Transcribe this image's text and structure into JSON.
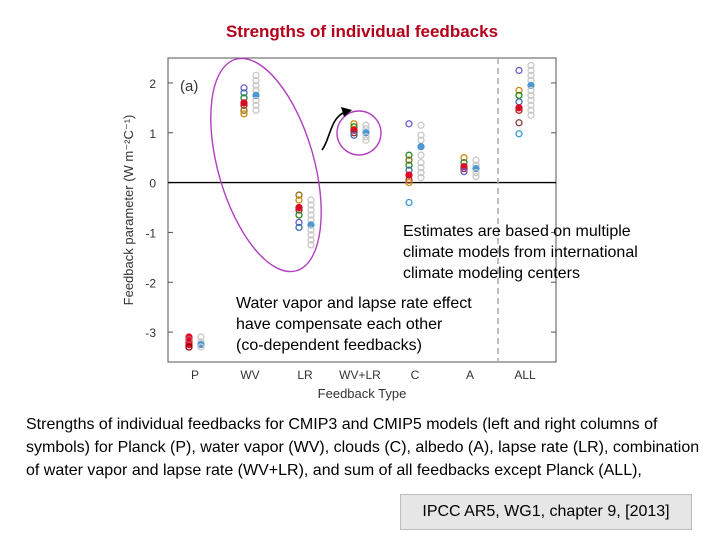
{
  "title": "Strengths of individual feedbacks",
  "notes": {
    "estimates": [
      "Estimates are based on multiple",
      "climate models from international",
      "climate modeling centers"
    ],
    "compensate": [
      "Water vapor and lapse rate effect",
      "have compensate each other",
      "(co-dependent feedbacks)"
    ]
  },
  "caption": "Strengths of individual feedbacks for CMIP3 and CMIP5 models (left and right columns of symbols) for Planck (P), water vapor (WV), clouds (C), albedo (A), lapse rate (LR), combination of water vapor and lapse rate (WV+LR), and sum of all feedbacks except Planck (ALL),",
  "source": "IPCC AR5, WG1, chapter 9, [2013]",
  "chart_data": {
    "type": "scatter",
    "panel_label": "(a)",
    "xlabel": "Feedback Type",
    "ylabel": "Feedback parameter (W m⁻²C⁻¹)",
    "categories": [
      "P",
      "WV",
      "LR",
      "WV+LR",
      "C",
      "A",
      "ALL"
    ],
    "ylim": [
      -3.6,
      2.5
    ],
    "yticks": [
      -3,
      -2,
      -1,
      0,
      1,
      2
    ],
    "zero_line": true,
    "divider_before": "ALL",
    "colors": {
      "mean": "#e8002a",
      "model_mean_right": "#4f97d1",
      "light": "#c8c8c8",
      "highlight_ellipse": "#b040c0"
    },
    "columns": {
      "P": {
        "left": [
          {
            "y": -3.1,
            "c": "#e8002a"
          },
          {
            "y": -3.2,
            "c": "#e8002a"
          },
          {
            "y": -3.25,
            "c": "#e8002a"
          },
          {
            "y": -3.3,
            "c": "#8b0000"
          },
          {
            "y": -3.15,
            "c": "#c0505a"
          }
        ],
        "right": [
          {
            "y": -3.1,
            "c": "#c8c8c8"
          },
          {
            "y": -3.2,
            "c": "#c8c8c8"
          },
          {
            "y": -3.25,
            "c": "#4f97d1"
          },
          {
            "y": -3.3,
            "c": "#c8c8c8"
          }
        ]
      },
      "WV": {
        "left": [
          {
            "y": 1.9,
            "c": "#6a5acd"
          },
          {
            "y": 1.8,
            "c": "#3a6fb0"
          },
          {
            "y": 1.7,
            "c": "#228b22"
          },
          {
            "y": 1.6,
            "c": "#e8002a"
          },
          {
            "y": 1.55,
            "c": "#b22222"
          },
          {
            "y": 1.45,
            "c": "#8b6914"
          },
          {
            "y": 1.38,
            "c": "#cc8800"
          }
        ],
        "right": [
          {
            "y": 2.15,
            "c": "#c8c8c8"
          },
          {
            "y": 2.05,
            "c": "#c8c8c8"
          },
          {
            "y": 1.95,
            "c": "#c8c8c8"
          },
          {
            "y": 1.85,
            "c": "#c8c8c8"
          },
          {
            "y": 1.75,
            "c": "#4f97d1"
          },
          {
            "y": 1.65,
            "c": "#c8c8c8"
          },
          {
            "y": 1.55,
            "c": "#c8c8c8"
          },
          {
            "y": 1.45,
            "c": "#c8c8c8"
          }
        ]
      },
      "LR": {
        "left": [
          {
            "y": -0.25,
            "c": "#8b6914"
          },
          {
            "y": -0.35,
            "c": "#cc8800"
          },
          {
            "y": -0.5,
            "c": "#e8002a"
          },
          {
            "y": -0.55,
            "c": "#b22222"
          },
          {
            "y": -0.65,
            "c": "#228b22"
          },
          {
            "y": -0.8,
            "c": "#6a5acd"
          },
          {
            "y": -0.9,
            "c": "#3a6fb0"
          }
        ],
        "right": [
          {
            "y": -0.35,
            "c": "#c8c8c8"
          },
          {
            "y": -0.45,
            "c": "#c8c8c8"
          },
          {
            "y": -0.55,
            "c": "#c8c8c8"
          },
          {
            "y": -0.65,
            "c": "#c8c8c8"
          },
          {
            "y": -0.75,
            "c": "#c8c8c8"
          },
          {
            "y": -0.85,
            "c": "#4f97d1"
          },
          {
            "y": -0.95,
            "c": "#c8c8c8"
          },
          {
            "y": -1.05,
            "c": "#c8c8c8"
          },
          {
            "y": -1.15,
            "c": "#c8c8c8"
          },
          {
            "y": -1.25,
            "c": "#c8c8c8"
          }
        ]
      },
      "WV+LR": {
        "left": [
          {
            "y": 1.18,
            "c": "#cc8800"
          },
          {
            "y": 1.12,
            "c": "#228b22"
          },
          {
            "y": 1.05,
            "c": "#e8002a"
          },
          {
            "y": 1.0,
            "c": "#b22222"
          },
          {
            "y": 0.95,
            "c": "#3a6fb0"
          }
        ],
        "right": [
          {
            "y": 1.15,
            "c": "#c8c8c8"
          },
          {
            "y": 1.08,
            "c": "#c8c8c8"
          },
          {
            "y": 1.0,
            "c": "#4f97d1"
          },
          {
            "y": 0.92,
            "c": "#c8c8c8"
          },
          {
            "y": 0.85,
            "c": "#c8c8c8"
          }
        ]
      },
      "C": {
        "left": [
          {
            "y": 1.18,
            "c": "#6a5acd"
          },
          {
            "y": 0.55,
            "c": "#228b22"
          },
          {
            "y": 0.45,
            "c": "#8b6914"
          },
          {
            "y": 0.35,
            "c": "#228b22"
          },
          {
            "y": 0.25,
            "c": "#3a6fb0"
          },
          {
            "y": 0.15,
            "c": "#e8002a"
          },
          {
            "y": 0.05,
            "c": "#b22222"
          },
          {
            "y": 0.0,
            "c": "#cc8800"
          },
          {
            "y": -0.4,
            "c": "#3a9ad9"
          }
        ],
        "right": [
          {
            "y": 1.15,
            "c": "#c8c8c8"
          },
          {
            "y": 0.95,
            "c": "#c8c8c8"
          },
          {
            "y": 0.85,
            "c": "#c8c8c8"
          },
          {
            "y": 0.72,
            "c": "#4f97d1"
          },
          {
            "y": 0.55,
            "c": "#c8c8c8"
          },
          {
            "y": 0.4,
            "c": "#c8c8c8"
          },
          {
            "y": 0.3,
            "c": "#c8c8c8"
          },
          {
            "y": 0.2,
            "c": "#c8c8c8"
          },
          {
            "y": 0.1,
            "c": "#c8c8c8"
          }
        ]
      },
      "A": {
        "left": [
          {
            "y": 0.5,
            "c": "#cc8800"
          },
          {
            "y": 0.4,
            "c": "#228b22"
          },
          {
            "y": 0.32,
            "c": "#e8002a"
          },
          {
            "y": 0.28,
            "c": "#b22222"
          },
          {
            "y": 0.22,
            "c": "#6a5acd"
          }
        ],
        "right": [
          {
            "y": 0.45,
            "c": "#c8c8c8"
          },
          {
            "y": 0.35,
            "c": "#c8c8c8"
          },
          {
            "y": 0.28,
            "c": "#4f97d1"
          },
          {
            "y": 0.2,
            "c": "#c8c8c8"
          },
          {
            "y": 0.12,
            "c": "#c8c8c8"
          }
        ]
      },
      "ALL": {
        "left": [
          {
            "y": 2.25,
            "c": "#6a5acd"
          },
          {
            "y": 1.85,
            "c": "#cc8800"
          },
          {
            "y": 1.75,
            "c": "#228b22"
          },
          {
            "y": 1.62,
            "c": "#3a6fb0"
          },
          {
            "y": 1.5,
            "c": "#e8002a"
          },
          {
            "y": 1.45,
            "c": "#b22222"
          },
          {
            "y": 1.2,
            "c": "#8b3a3a"
          },
          {
            "y": 0.98,
            "c": "#3a9ad9"
          }
        ],
        "right": [
          {
            "y": 2.35,
            "c": "#c8c8c8"
          },
          {
            "y": 2.25,
            "c": "#c8c8c8"
          },
          {
            "y": 2.15,
            "c": "#c8c8c8"
          },
          {
            "y": 2.05,
            "c": "#c8c8c8"
          },
          {
            "y": 1.95,
            "c": "#4f97d1"
          },
          {
            "y": 1.85,
            "c": "#c8c8c8"
          },
          {
            "y": 1.75,
            "c": "#c8c8c8"
          },
          {
            "y": 1.65,
            "c": "#c8c8c8"
          },
          {
            "y": 1.55,
            "c": "#c8c8c8"
          },
          {
            "y": 1.45,
            "c": "#c8c8c8"
          },
          {
            "y": 1.35,
            "c": "#c8c8c8"
          }
        ]
      }
    }
  }
}
